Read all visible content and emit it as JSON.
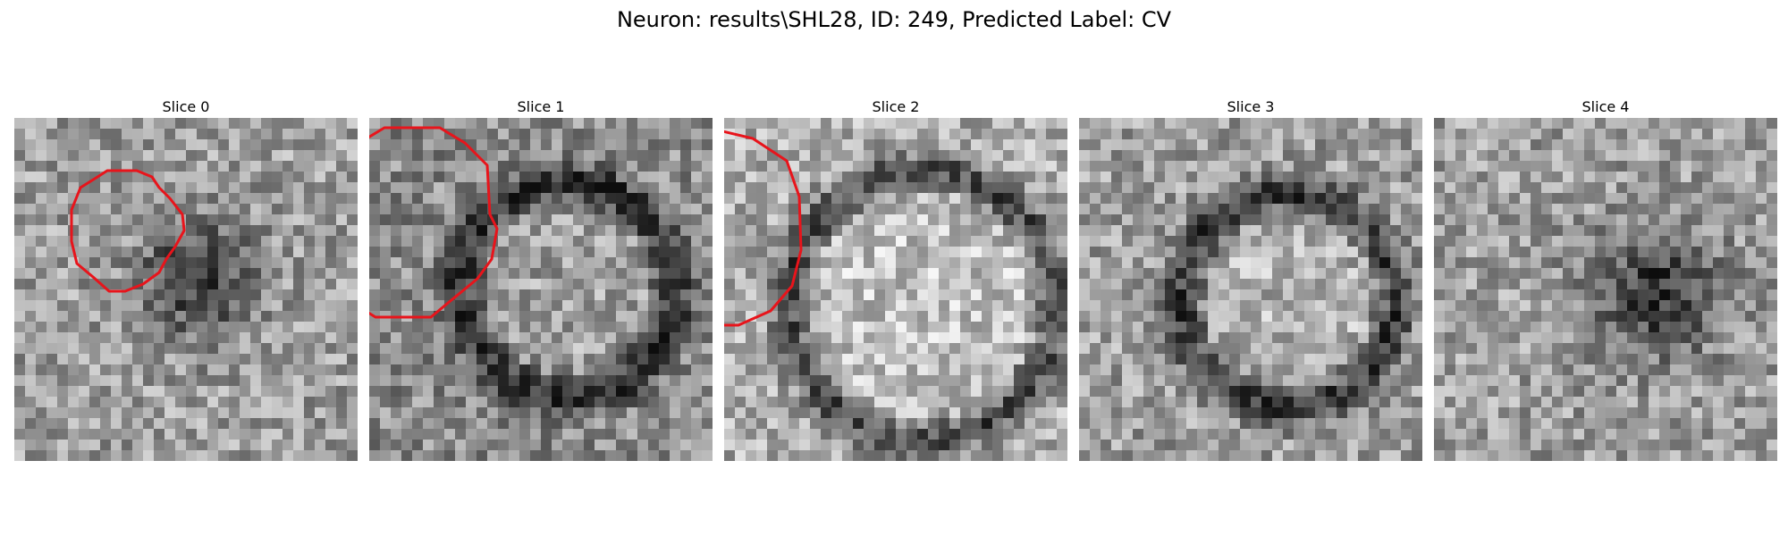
{
  "title": "Neuron: results\\SHL28, ID: 249, Predicted Label: CV",
  "panels": [
    {
      "label": "Slice 0",
      "contour": [
        [
          120,
          191
        ],
        [
          153,
          191
        ],
        [
          170,
          198
        ],
        [
          178,
          210
        ],
        [
          190,
          222
        ],
        [
          204,
          240
        ],
        [
          206,
          258
        ],
        [
          196,
          276
        ],
        [
          186,
          290
        ],
        [
          178,
          305
        ],
        [
          160,
          318
        ],
        [
          140,
          326
        ],
        [
          122,
          326
        ],
        [
          104,
          310
        ],
        [
          86,
          295
        ],
        [
          80,
          270
        ],
        [
          80,
          235
        ],
        [
          90,
          210
        ],
        [
          106,
          200
        ]
      ]
    },
    {
      "label": "Slice 1",
      "contour": [
        [
          430,
          143
        ],
        [
          492,
          143
        ],
        [
          520,
          160
        ],
        [
          545,
          185
        ],
        [
          548,
          240
        ],
        [
          556,
          256
        ],
        [
          550,
          290
        ],
        [
          534,
          312
        ],
        [
          500,
          340
        ],
        [
          482,
          355
        ],
        [
          420,
          355
        ],
        [
          404,
          345
        ],
        [
          380,
          325
        ],
        [
          370,
          300
        ],
        [
          364,
          275
        ],
        [
          362,
          230
        ],
        [
          372,
          198
        ],
        [
          390,
          175
        ],
        [
          410,
          155
        ]
      ]
    },
    {
      "label": "Slice 2",
      "contour": [
        [
          758,
          145
        ],
        [
          800,
          145
        ],
        [
          842,
          155
        ],
        [
          880,
          180
        ],
        [
          894,
          220
        ],
        [
          896,
          280
        ],
        [
          886,
          320
        ],
        [
          862,
          348
        ],
        [
          826,
          364
        ],
        [
          748,
          364
        ],
        [
          716,
          346
        ],
        [
          692,
          322
        ],
        [
          675,
          290
        ],
        [
          673,
          230
        ],
        [
          682,
          195
        ],
        [
          704,
          168
        ],
        [
          730,
          155
        ]
      ]
    },
    {
      "label": "Slice 3",
      "contour": [
        [
          1090,
          173
        ],
        [
          1110,
          173
        ],
        [
          1126,
          180
        ],
        [
          1160,
          190
        ],
        [
          1178,
          210
        ],
        [
          1186,
          240
        ],
        [
          1186,
          285
        ],
        [
          1176,
          305
        ],
        [
          1162,
          322
        ],
        [
          1140,
          346
        ],
        [
          1116,
          366
        ],
        [
          1094,
          366
        ],
        [
          1074,
          350
        ],
        [
          1034,
          330
        ],
        [
          1016,
          306
        ],
        [
          1014,
          225
        ],
        [
          1030,
          205
        ],
        [
          1058,
          184
        ]
      ]
    },
    {
      "label": "Slice 4",
      "contour": [
        [
          1402,
          202
        ],
        [
          1446,
          202
        ],
        [
          1474,
          214
        ],
        [
          1482,
          232
        ],
        [
          1490,
          250
        ],
        [
          1488,
          290
        ],
        [
          1474,
          305
        ],
        [
          1464,
          316
        ],
        [
          1436,
          326
        ],
        [
          1414,
          326
        ],
        [
          1390,
          315
        ],
        [
          1368,
          302
        ],
        [
          1354,
          280
        ],
        [
          1354,
          254
        ],
        [
          1364,
          232
        ],
        [
          1380,
          218
        ]
      ]
    }
  ]
}
